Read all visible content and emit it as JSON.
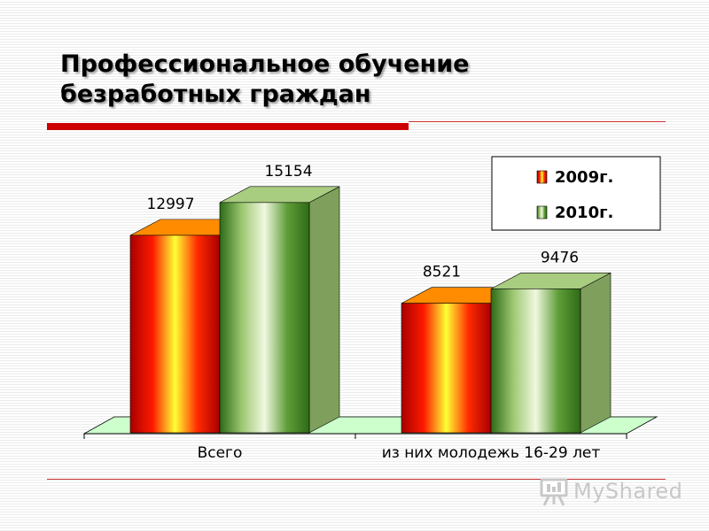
{
  "slide": {
    "title_lines": [
      "Профессиональное обучение",
      "безработных граждан"
    ],
    "accent_color": "#cc0000",
    "line_color": "#cc3333"
  },
  "chart_data": {
    "type": "bar",
    "categories": [
      "Всего",
      "из них молодежь 16-29 лет"
    ],
    "series": [
      {
        "name": "2009г.",
        "values": [
          12997,
          8521
        ],
        "colors": [
          "#a80000",
          "#ff1a00",
          "#ffff33",
          "#ff2a00",
          "#a80000"
        ]
      },
      {
        "name": "2010г.",
        "values": [
          15154,
          9476
        ],
        "colors": [
          "#2e6b16",
          "#9ec873",
          "#f0f8df",
          "#5f9e3a",
          "#2e6b16"
        ]
      }
    ],
    "data_labels": [
      "12997",
      "8521",
      "15154",
      "9476"
    ],
    "legend_position": "top-right",
    "ylim": [
      0,
      18000
    ],
    "grid": false,
    "floor_color": "#ccffcc"
  },
  "watermark": {
    "text": "MyShared",
    "icon": "presentation-board-icon"
  }
}
